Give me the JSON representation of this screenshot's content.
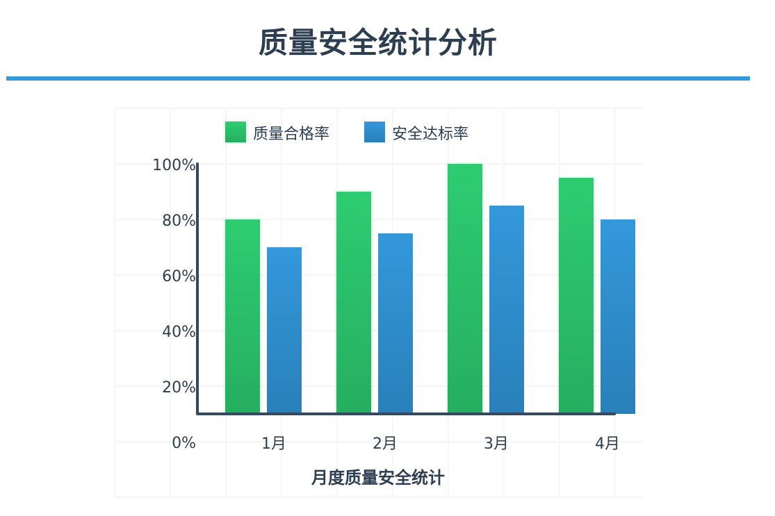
{
  "page": {
    "title": "质量安全统计分析"
  },
  "colors": {
    "accent_rule": "#3498db",
    "text_dark": "#2c3e50",
    "axis": "#34495e",
    "grid": "#eeeeee"
  },
  "chart_data": {
    "type": "bar",
    "title": "",
    "xlabel": "月度质量安全统计",
    "ylabel": "",
    "categories": [
      "1月",
      "2月",
      "3月",
      "4月"
    ],
    "series": [
      {
        "name": "质量合格率",
        "values": [
          80,
          90,
          100,
          95
        ],
        "color_top": "#2ecc71",
        "color_bottom": "#27ae60"
      },
      {
        "name": "安全达标率",
        "values": [
          70,
          75,
          85,
          80
        ],
        "color_top": "#3498db",
        "color_bottom": "#2980b9"
      }
    ],
    "y_ticks": [
      0,
      20,
      40,
      60,
      80,
      100
    ],
    "y_tick_labels": [
      "0%",
      "20%",
      "40%",
      "60%",
      "80%",
      "100%"
    ],
    "ylim": [
      0,
      100
    ],
    "grid": true,
    "legend_position": "top"
  }
}
